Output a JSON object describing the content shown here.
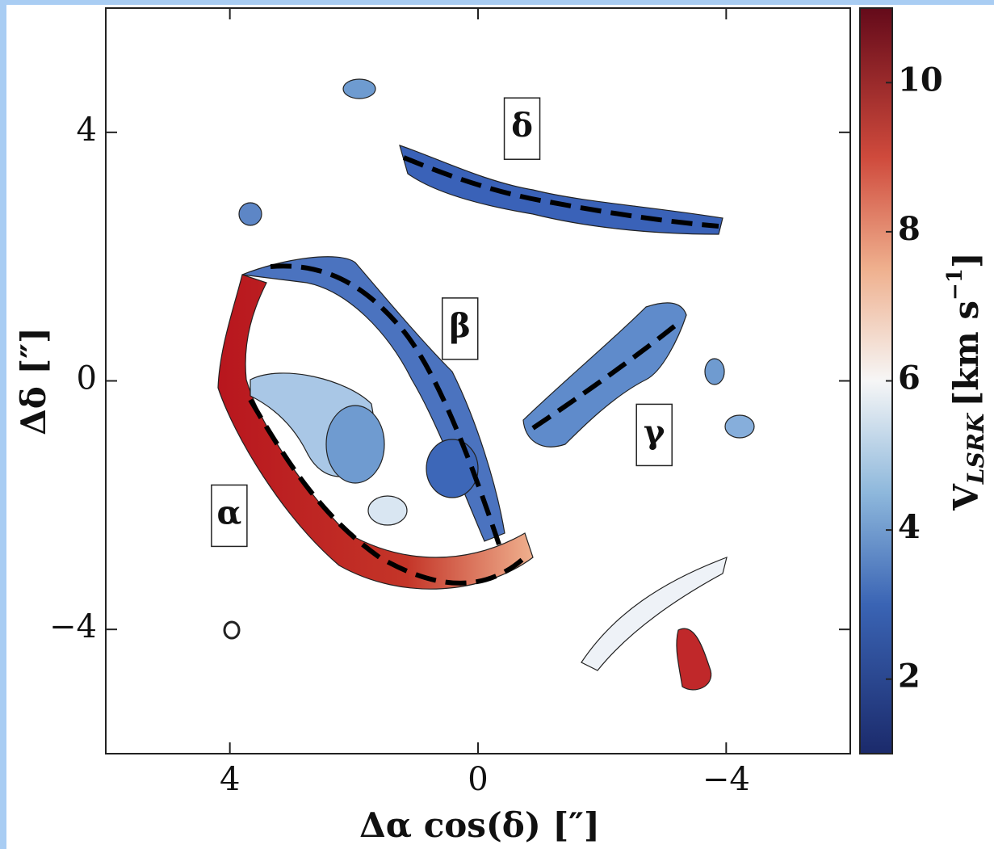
{
  "chart_data": {
    "type": "image",
    "x_label": "Δα cos(δ) [″]",
    "y_label": "Δδ [″]",
    "xlim": [
      6,
      -6
    ],
    "ylim": [
      -6,
      6
    ],
    "xticks": [
      4,
      0,
      {
        "value": -4,
        "label": "−4"
      }
    ],
    "yticks": [
      {
        "value": -4,
        "label": "−4"
      },
      0,
      4
    ],
    "colorbar": {
      "lim": [
        1,
        11
      ],
      "ticks": [
        2,
        4,
        6,
        8,
        10
      ],
      "label_symbol": "V",
      "label_subscript": "LSRK",
      "label_units": "[km s",
      "label_exponent": "−1",
      "label_close": "]"
    },
    "annotations": [
      {
        "text": "δ",
        "x": -0.71,
        "y": 4.06
      },
      {
        "text": "β",
        "x": 0.29,
        "y": 0.84
      },
      {
        "text": "γ",
        "x": -2.84,
        "y": -0.87
      },
      {
        "text": "α",
        "x": 4.01,
        "y": -2.17
      }
    ]
  }
}
